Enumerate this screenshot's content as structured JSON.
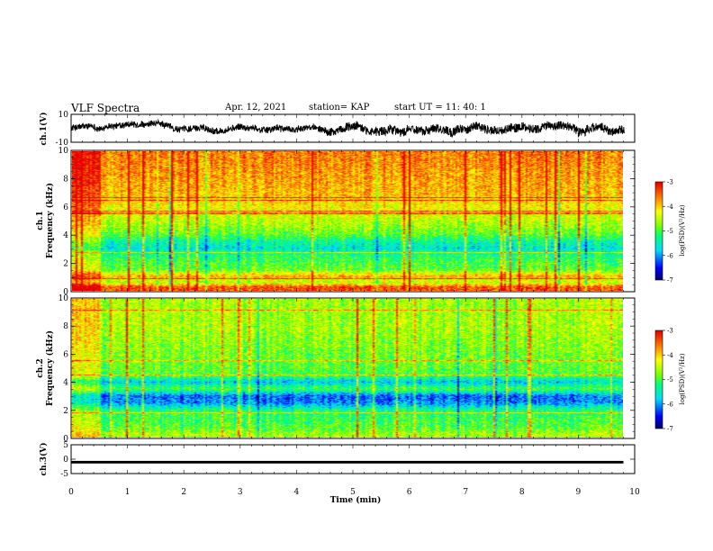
{
  "header": {
    "title": "VLF Spectra",
    "date": "Apr. 12, 2021",
    "station": "station= KAP",
    "start": "start  UT =   11: 40: 1"
  },
  "chart_data": [
    {
      "type": "line",
      "panel": "ch1-waveform",
      "ylabel": "ch.1(V)",
      "ylim": [
        -10,
        10
      ],
      "yticks": [
        "10",
        "-10"
      ],
      "xlim": [
        0,
        10
      ],
      "description_values": "noisy waveform roughly between -5 and 5 V, wider swings after 4.5 min"
    },
    {
      "type": "heatmap",
      "panel": "ch1-spectrogram",
      "ylabel_line1": "ch.1",
      "ylabel_line2": "Frequency  (kHz)",
      "ylim": [
        0,
        10
      ],
      "yticks": [
        "0",
        "2",
        "4",
        "6",
        "8",
        "10"
      ],
      "xlim": [
        0,
        9.8
      ],
      "colorbar": {
        "label": "log(PSD)(V²/Hz)",
        "range": [
          -7,
          -3
        ],
        "ticks": [
          "-3",
          "-4",
          "-5",
          "-6",
          "-7"
        ]
      },
      "band_levels": [
        {
          "f": 0.25,
          "v": -3.4
        },
        {
          "f": 0.6,
          "v": -4.6
        },
        {
          "f": 1.0,
          "v": -3.8
        },
        {
          "f": 1.5,
          "v": -4.9
        },
        {
          "f": 2.0,
          "v": -5.0
        },
        {
          "f": 2.5,
          "v": -5.2
        },
        {
          "f": 3.0,
          "v": -5.6
        },
        {
          "f": 3.5,
          "v": -5.4
        },
        {
          "f": 4.0,
          "v": -4.9
        },
        {
          "f": 4.5,
          "v": -4.7
        },
        {
          "f": 5.0,
          "v": -4.5
        },
        {
          "f": 6.0,
          "v": -4.2
        },
        {
          "f": 7.0,
          "v": -3.9
        },
        {
          "f": 8.0,
          "v": -3.8
        },
        {
          "f": 9.0,
          "v": -3.7
        },
        {
          "f": 10.0,
          "v": -3.6
        }
      ]
    },
    {
      "type": "heatmap",
      "panel": "ch2-spectrogram",
      "ylabel_line1": "ch.2",
      "ylabel_line2": "Frequency  (kHz)",
      "ylim": [
        0,
        10
      ],
      "yticks": [
        "0",
        "2",
        "4",
        "6",
        "8",
        "10"
      ],
      "xlim": [
        0,
        9.8
      ],
      "colorbar": {
        "label": "log(PSD)(V²/Hz)",
        "range": [
          -7,
          -3
        ],
        "ticks": [
          "-3",
          "-4",
          "-5",
          "-6",
          "-7"
        ]
      },
      "band_levels": [
        {
          "f": 0.25,
          "v": -4.6
        },
        {
          "f": 0.6,
          "v": -4.9
        },
        {
          "f": 1.0,
          "v": -5.0
        },
        {
          "f": 1.5,
          "v": -5.1
        },
        {
          "f": 2.0,
          "v": -5.3
        },
        {
          "f": 2.5,
          "v": -6.1
        },
        {
          "f": 3.0,
          "v": -6.2
        },
        {
          "f": 3.5,
          "v": -5.0
        },
        {
          "f": 4.0,
          "v": -5.8
        },
        {
          "f": 4.5,
          "v": -5.0
        },
        {
          "f": 5.0,
          "v": -4.9
        },
        {
          "f": 6.0,
          "v": -4.8
        },
        {
          "f": 7.0,
          "v": -4.7
        },
        {
          "f": 8.0,
          "v": -4.6
        },
        {
          "f": 9.0,
          "v": -4.6
        },
        {
          "f": 10.0,
          "v": -4.6
        }
      ]
    },
    {
      "type": "line",
      "panel": "ch3-waveform",
      "ylabel": "ch.3(V)",
      "ylim": [
        -5,
        5
      ],
      "yticks": [
        "5",
        "0",
        "-5"
      ],
      "xlim": [
        0,
        10
      ],
      "description_values": "thick flat trace near -1 V from 0 to 9.8 min"
    }
  ],
  "xaxis": {
    "label": "Time  (min)",
    "range": [
      0,
      10
    ],
    "ticks": [
      "0",
      "1",
      "2",
      "3",
      "4",
      "5",
      "6",
      "7",
      "8",
      "9",
      "10"
    ]
  }
}
